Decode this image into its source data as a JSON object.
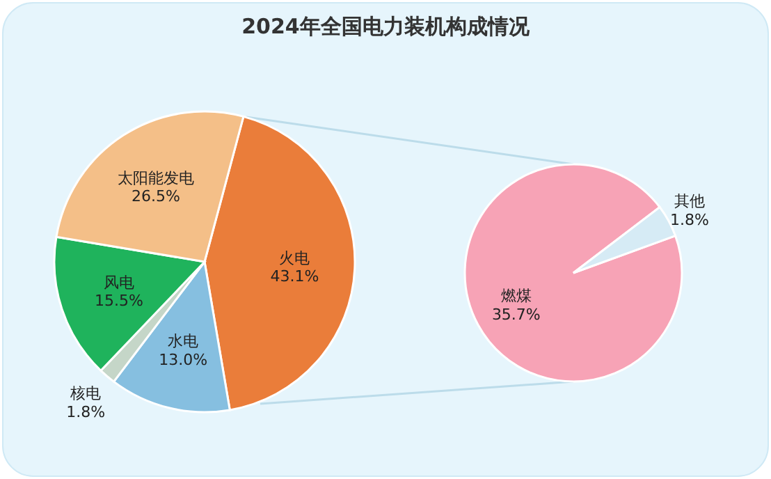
{
  "chart_data": [
    {
      "type": "pie",
      "title": "2024年全国电力装机构成情况",
      "categories": [
        "火电",
        "水电",
        "核电",
        "风电",
        "太阳能发电"
      ],
      "values": [
        43.1,
        13.0,
        1.8,
        15.5,
        26.5
      ],
      "value_labels": [
        "43.1%",
        "13.0%",
        "1.8%",
        "15.5%",
        "26.5%"
      ],
      "colors": [
        "#ea7d3a",
        "#86bfe0",
        "#c5d6c8",
        "#1fb35c",
        "#f4bf88"
      ]
    },
    {
      "type": "pie",
      "categories": [
        "燃煤",
        "其他"
      ],
      "values": [
        35.7,
        1.8
      ],
      "value_labels": [
        "35.7%",
        "1.8%"
      ],
      "colors": [
        "#f7a3b6",
        "#d6ebf5"
      ]
    }
  ]
}
